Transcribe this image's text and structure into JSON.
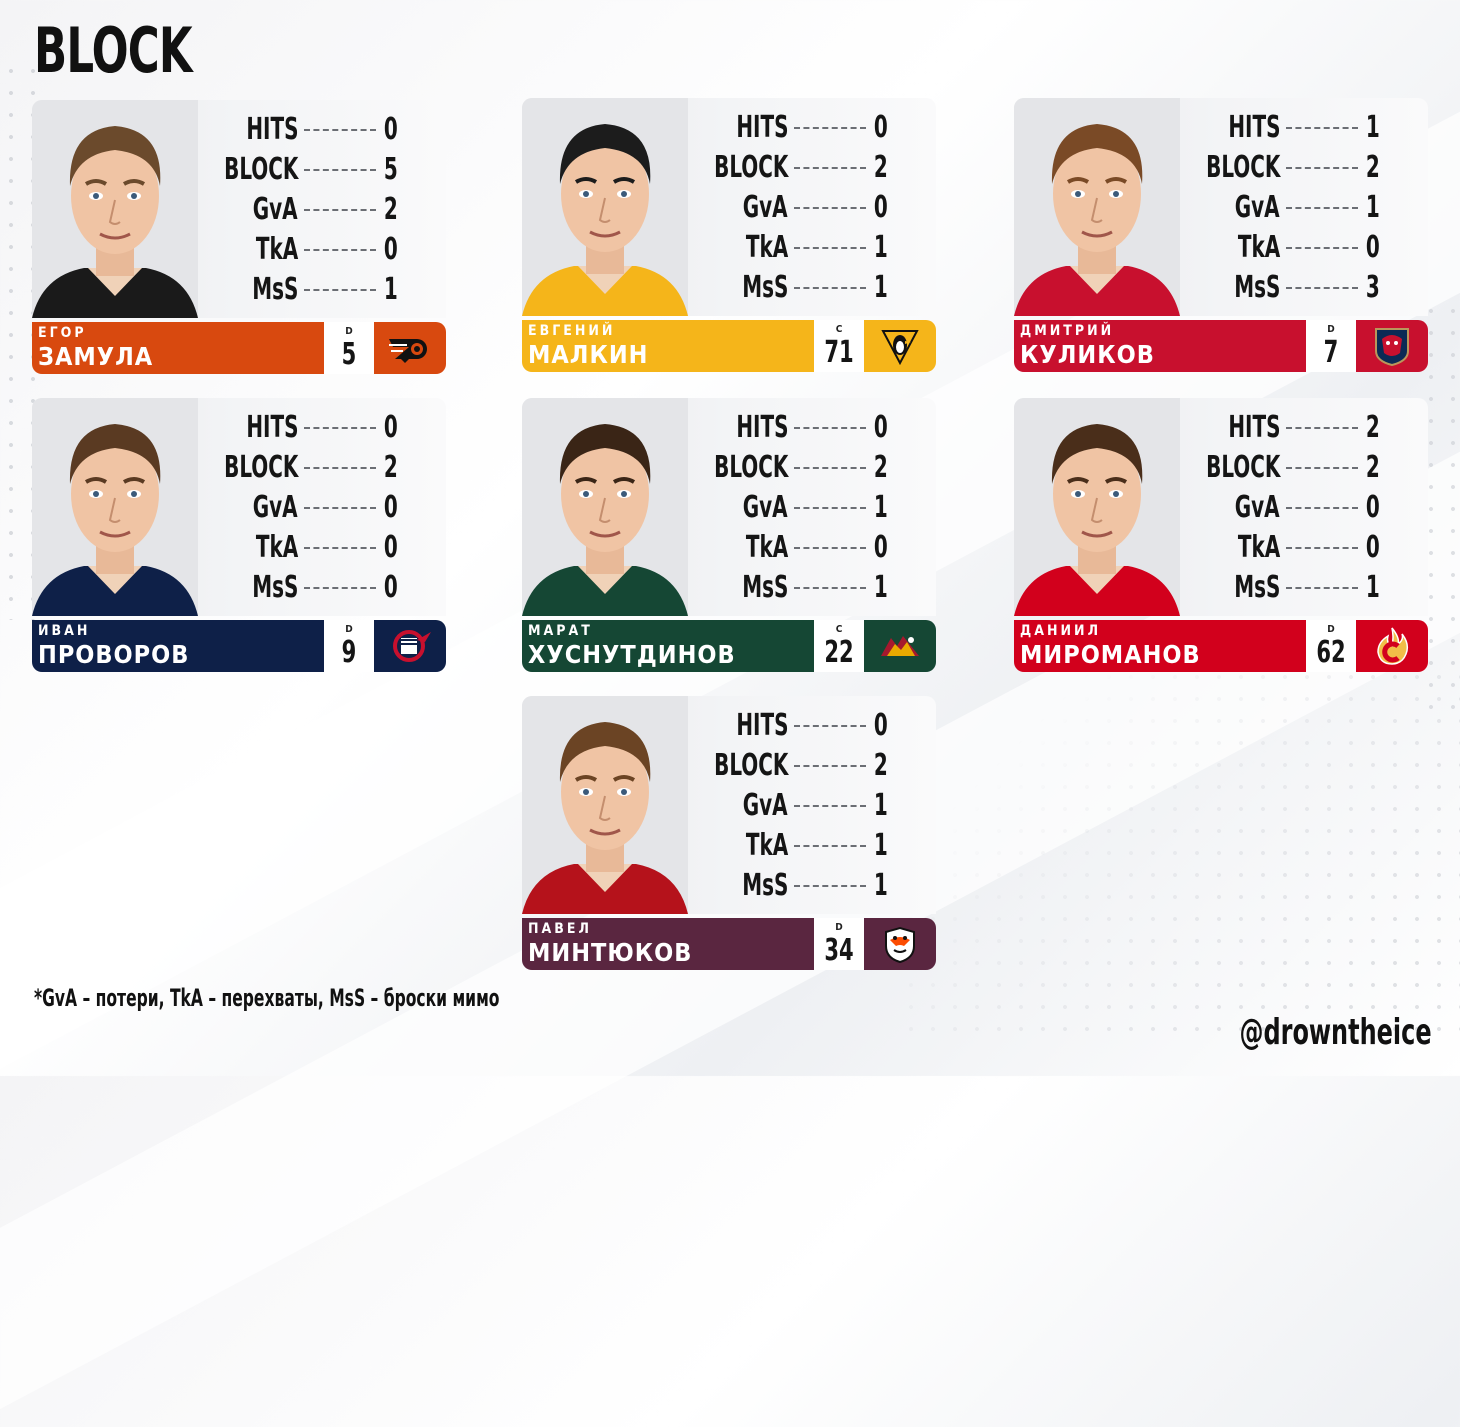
{
  "title": "BLOCK",
  "stat_labels": [
    "HITS",
    "BLOCK",
    "GvA",
    "TkA",
    "MsS"
  ],
  "players": [
    {
      "first_name": "Егор",
      "last_name": "Замула",
      "position": "D",
      "number": "5",
      "team_color": "#d8490f",
      "logo_bg": "#d8490f",
      "logo_icon": "flyers-logo-icon",
      "hair": "#6b4a2c",
      "jersey": "#1a1a1a",
      "stats": [
        0,
        5,
        2,
        0,
        1
      ]
    },
    {
      "first_name": "Евгений",
      "last_name": "Малкин",
      "position": "C",
      "number": "71",
      "team_color": "#f5b51a",
      "logo_bg": "#f5b51a",
      "logo_icon": "penguins-logo-icon",
      "hair": "#1c1c1c",
      "jersey": "#f5b51a",
      "stats": [
        0,
        2,
        0,
        1,
        1
      ]
    },
    {
      "first_name": "Дмитрий",
      "last_name": "Куликов",
      "position": "D",
      "number": "7",
      "team_color": "#c8102e",
      "logo_bg": "#c8102e",
      "logo_icon": "panthers-logo-icon",
      "hair": "#7a4a26",
      "jersey": "#c8102e",
      "stats": [
        1,
        2,
        1,
        0,
        3
      ]
    },
    {
      "first_name": "Иван",
      "last_name": "Проворов",
      "position": "D",
      "number": "9",
      "team_color": "#0e2048",
      "logo_bg": "#0e2048",
      "logo_icon": "blue-jackets-logo-icon",
      "hair": "#5a3a22",
      "jersey": "#0e2048",
      "stats": [
        0,
        2,
        0,
        0,
        0
      ]
    },
    {
      "first_name": "Марат",
      "last_name": "Хуснутдинов",
      "position": "C",
      "number": "22",
      "team_color": "#154734",
      "logo_bg": "#154734",
      "logo_icon": "wild-logo-icon",
      "hair": "#3a2516",
      "jersey": "#154734",
      "stats": [
        0,
        2,
        1,
        0,
        1
      ]
    },
    {
      "first_name": "Даниил",
      "last_name": "Мироманов",
      "position": "D",
      "number": "62",
      "team_color": "#d2001c",
      "logo_bg": "#d2001c",
      "logo_icon": "flames-logo-icon",
      "hair": "#4a2e1a",
      "jersey": "#d2001c",
      "stats": [
        2,
        2,
        0,
        0,
        1
      ]
    },
    {
      "first_name": "Павел",
      "last_name": "Минтюков",
      "position": "D",
      "number": "34",
      "team_color": "#5a2640",
      "logo_bg": "#5a2640",
      "logo_icon": "ducks-logo-icon",
      "hair": "#6b4424",
      "jersey": "#b5121b",
      "stats": [
        0,
        2,
        1,
        1,
        1
      ]
    }
  ],
  "footnote": "*GvA – потери, TkA – перехваты, MsS – броски мимо",
  "credit": "@drowntheice"
}
